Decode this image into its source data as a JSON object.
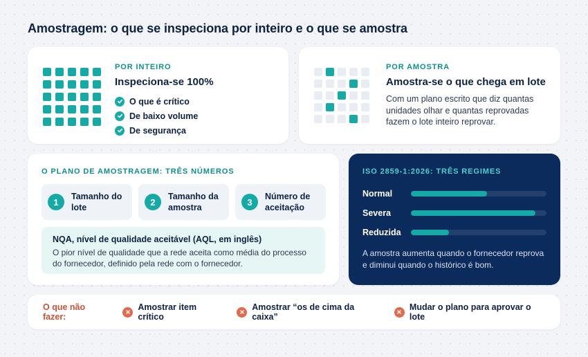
{
  "title": "Amostragem: o que se inspeciona por inteiro e o que se amostra",
  "colors": {
    "accent": "#15aaa6",
    "navy": "#0b2b5c",
    "danger": "#e06a4d",
    "text": "#0d2142"
  },
  "full": {
    "eyebrow": "POR INTEIRO",
    "heading": "Inspeciona-se 100%",
    "items": [
      "O que é crítico",
      "De baixo volume",
      "De segurança"
    ],
    "icon": "check-circle-icon"
  },
  "sample": {
    "eyebrow": "POR AMOSTRA",
    "heading": "Amostra-se o que chega em lote",
    "description": "Com um plano escrito que diz quantas unidades olhar e quantas reprovadas fazem o lote inteiro reprovar."
  },
  "plan": {
    "eyebrow": "O PLANO DE AMOSTRAGEM: TRÊS NÚMEROS",
    "numbers": [
      {
        "n": "1",
        "label": "Tamanho do lote"
      },
      {
        "n": "2",
        "label": "Tamanho da amostra"
      },
      {
        "n": "3",
        "label": "Número de aceitação"
      }
    ],
    "nqa_title": "NQA, nível de qualidade aceitável (AQL, em inglês)",
    "nqa_text": "O pior nível de qualidade que a rede aceita como média do processo do fornecedor, definido pela rede com o fornecedor."
  },
  "iso": {
    "eyebrow": "ISO 2859-1:2026: TRÊS REGIMES",
    "regimes": [
      {
        "label": "Normal",
        "level": 0.56
      },
      {
        "label": "Severa",
        "level": 0.92
      },
      {
        "label": "Reduzida",
        "level": 0.28
      }
    ],
    "note": "A amostra aumenta quando o fornecedor reprova e diminui quando o histórico é bom."
  },
  "donts": {
    "label": "O que não fazer:",
    "items": [
      "Amostrar item crítico",
      "Amostrar “os de cima da caixa”",
      "Mudar o plano para aprovar o lote"
    ],
    "icon": "x-circle-icon"
  }
}
